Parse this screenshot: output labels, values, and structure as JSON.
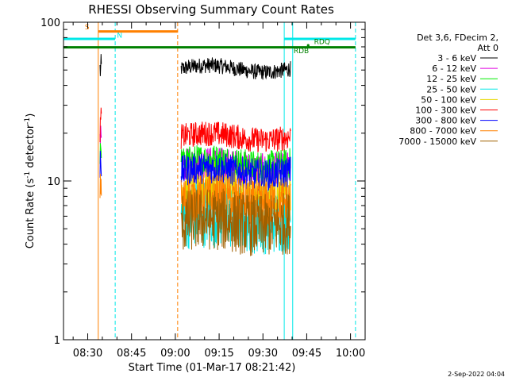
{
  "chart_data": {
    "type": "line",
    "title": "RHESSI Observing Summary Count Rates",
    "xlabel": "Start Time (01-Mar-17 08:21:42)",
    "ylabel_main": "Count Rate (s",
    "ylabel_sup1": "-1",
    "ylabel_mid": " detector",
    "ylabel_sup2": "-1",
    "ylabel_end": ")",
    "y_scale": "log",
    "ylim": [
      1,
      100
    ],
    "xlim_minutes_after_0800": [
      21.7,
      125
    ],
    "x_ticks": [
      {
        "t": 30,
        "label": "08:30"
      },
      {
        "t": 45,
        "label": "08:45"
      },
      {
        "t": 60,
        "label": "09:00"
      },
      {
        "t": 75,
        "label": "09:15"
      },
      {
        "t": 90,
        "label": "09:30"
      },
      {
        "t": 105,
        "label": "09:45"
      },
      {
        "t": 120,
        "label": "10:00"
      }
    ],
    "y_ticks": [
      {
        "v": 1,
        "label": "1"
      },
      {
        "v": 10,
        "label": "10"
      },
      {
        "v": 100,
        "label": "100"
      }
    ],
    "legend": {
      "header1": "Det 3,6, FDecim 2,",
      "header2": "Att 0",
      "entries": [
        {
          "label": "3 - 6 keV",
          "color": "#000000"
        },
        {
          "label": "6 - 12 keV",
          "color": "#e000e0"
        },
        {
          "label": "12 - 25 keV",
          "color": "#00ee00"
        },
        {
          "label": "25 - 50 keV",
          "color": "#00e8e8"
        },
        {
          "label": "50 - 100 keV",
          "color": "#e8d800"
        },
        {
          "label": "100 - 300 keV",
          "color": "#ff0000"
        },
        {
          "label": "300 - 800 keV",
          "color": "#0000ff"
        },
        {
          "label": "800 - 7000 keV",
          "color": "#ff8000"
        },
        {
          "label": "7000 - 15000 keV",
          "color": "#a06000"
        }
      ]
    },
    "series": [
      {
        "name": "3 - 6 keV",
        "color": "#000000",
        "segments": [
          {
            "t0": 34.2,
            "t1": 34.7,
            "base": 50,
            "noise": 0.1
          },
          {
            "t0": 62.0,
            "t1": 99.5,
            "base": 51,
            "noise": 0.05
          }
        ]
      },
      {
        "name": "6 - 12 keV",
        "color": "#e000e0",
        "segments": [
          {
            "t0": 34.2,
            "t1": 34.7,
            "base": 16,
            "noise": 0.15
          },
          {
            "t0": 62.0,
            "t1": 99.5,
            "base": 12.5,
            "noise": 0.1
          }
        ]
      },
      {
        "name": "12 - 25 keV",
        "color": "#00ee00",
        "segments": [
          {
            "t0": 34.2,
            "t1": 34.7,
            "base": 17,
            "noise": 0.15
          },
          {
            "t0": 62.0,
            "t1": 99.5,
            "base": 13,
            "noise": 0.1
          }
        ]
      },
      {
        "name": "25 - 50 keV",
        "color": "#00e8e8",
        "segments": [
          {
            "t0": 62.0,
            "t1": 99.5,
            "base": 6,
            "noise": 0.22
          }
        ]
      },
      {
        "name": "50 - 100 keV",
        "color": "#e8d800",
        "segments": [
          {
            "t0": 62.0,
            "t1": 99.5,
            "base": 9,
            "noise": 0.15
          }
        ]
      },
      {
        "name": "100 - 300 keV",
        "color": "#ff0000",
        "segments": [
          {
            "t0": 34.2,
            "t1": 34.7,
            "base": 22,
            "noise": 0.15
          },
          {
            "t0": 62.0,
            "t1": 99.5,
            "base": 19,
            "noise": 0.08
          }
        ]
      },
      {
        "name": "300 - 800 keV",
        "color": "#0000ff",
        "segments": [
          {
            "t0": 34.2,
            "t1": 34.7,
            "base": 14,
            "noise": 0.15
          },
          {
            "t0": 62.0,
            "t1": 99.5,
            "base": 11.5,
            "noise": 0.1
          }
        ]
      },
      {
        "name": "800 - 7000 keV",
        "color": "#ff8000",
        "segments": [
          {
            "t0": 34.2,
            "t1": 34.7,
            "base": 10,
            "noise": 0.15
          },
          {
            "t0": 62.0,
            "t1": 99.5,
            "base": 7.5,
            "noise": 0.15
          }
        ]
      },
      {
        "name": "7000 - 15000 keV",
        "color": "#a06000",
        "segments": [
          {
            "t0": 62.0,
            "t1": 99.5,
            "base": 5.5,
            "noise": 0.2
          }
        ]
      }
    ],
    "vertical_markers": [
      {
        "t": 21.7,
        "color": "#00e8e8",
        "style": "solid"
      },
      {
        "t": 33.6,
        "color": "#ff8000",
        "style": "solid"
      },
      {
        "t": 39.4,
        "color": "#00e8e8",
        "style": "dashed"
      },
      {
        "t": 60.8,
        "color": "#ff8000",
        "style": "dashed"
      },
      {
        "t": 97.3,
        "color": "#00e8e8",
        "style": "solid"
      },
      {
        "t": 100.2,
        "color": "#00e8e8",
        "style": "solid"
      },
      {
        "t": 121.7,
        "color": "#00e8e8",
        "style": "dashed"
      }
    ],
    "flag_bars": [
      {
        "label": "S",
        "color": "#ff8000",
        "t0": 33.6,
        "t1": 60.8,
        "level": 87.5,
        "label_t": 29.0,
        "label_level": 90
      },
      {
        "label": "N",
        "color": "#00e8e8",
        "t0": 21.7,
        "t1": 39.4,
        "level": 78.5,
        "label_t": 40.0,
        "label_level": 80
      },
      {
        "label": "",
        "color": "#00e8e8",
        "t0": 97.3,
        "t1": 121.7,
        "level": 78.5
      },
      {
        "label": "RDB",
        "color": "#008000",
        "t0": 21.7,
        "t1": 121.7,
        "level": 69.5,
        "label_t": 100.5,
        "label_level": 64
      },
      {
        "label": "RDQ",
        "color": "#008000",
        "t0": 105.5,
        "t1": 105.5,
        "level": 71.5,
        "label_t": 107.5,
        "label_level": 73
      }
    ],
    "timestamp": "2-Sep-2022 04:04"
  }
}
